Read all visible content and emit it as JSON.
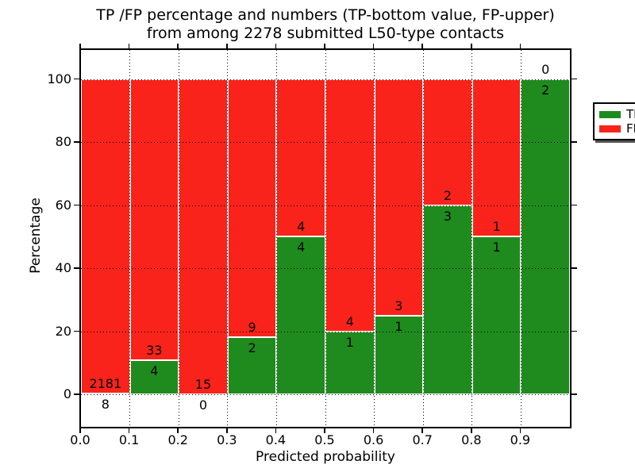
{
  "title": {
    "line1": "TP /FP percentage and numbers (TP-bottom value, FP-upper)",
    "line2": "from among 2278 submitted L50-type contacts"
  },
  "chart_data": {
    "type": "bar",
    "stacked": true,
    "title": "TP /FP percentage and numbers (TP-bottom value, FP-upper) from among 2278 submitted L50-type contacts",
    "xlabel": "Predicted probability",
    "ylabel": "Percentage",
    "xlim": [
      0.0,
      1.0
    ],
    "ylim": [
      -11,
      110
    ],
    "grid": "dotted",
    "x_tick_labels": [
      "0.0",
      "0.1",
      "0.2",
      "0.3",
      "0.4",
      "0.5",
      "0.6",
      "0.7",
      "0.8",
      "0.9"
    ],
    "y_tick_values": [
      0,
      20,
      40,
      60,
      80,
      100
    ],
    "categories": [
      "0.0-0.1",
      "0.1-0.2",
      "0.2-0.3",
      "0.3-0.4",
      "0.4-0.5",
      "0.5-0.6",
      "0.6-0.7",
      "0.7-0.8",
      "0.8-0.9",
      "0.9-1.0"
    ],
    "series": [
      {
        "name": "TP",
        "color": "#1f8b1f",
        "counts": [
          8,
          4,
          0,
          2,
          4,
          1,
          1,
          3,
          1,
          2
        ]
      },
      {
        "name": "FP",
        "color": "#f9231b",
        "counts": [
          2181,
          33,
          15,
          9,
          4,
          4,
          3,
          2,
          1,
          0
        ]
      }
    ],
    "tp_percent": [
      0.37,
      10.81,
      0.0,
      18.18,
      50.0,
      20.0,
      25.0,
      60.0,
      50.0,
      100.0
    ],
    "legend": {
      "position": "upper right",
      "entries": [
        {
          "label": "TP",
          "color": "#1f8b1f"
        },
        {
          "label": "FP",
          "color": "#f9231b"
        }
      ]
    }
  }
}
